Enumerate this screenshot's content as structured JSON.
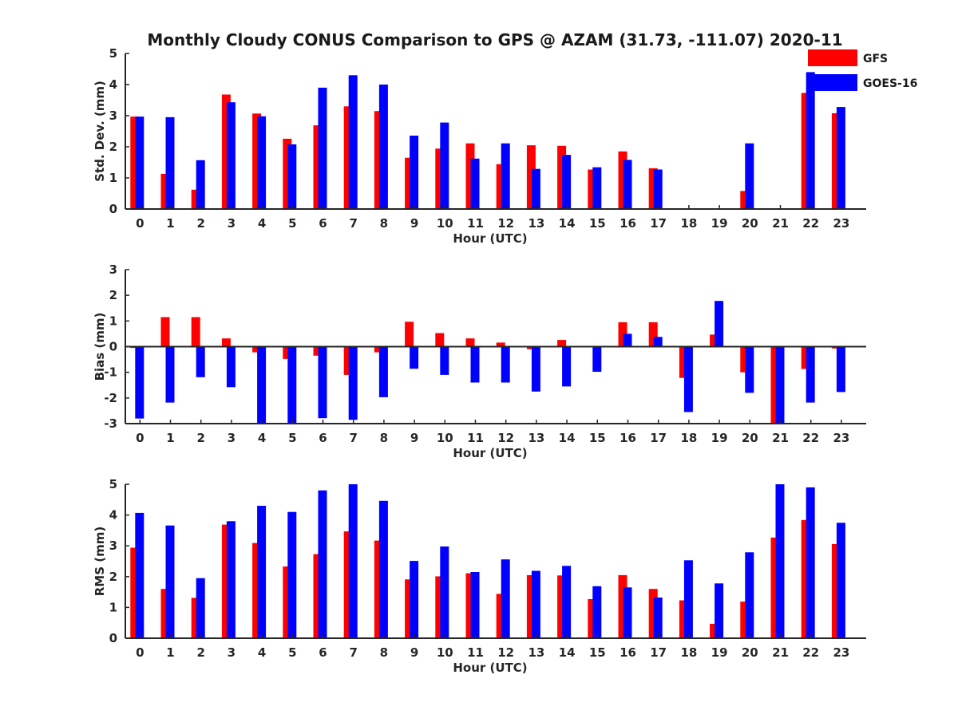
{
  "figure_title": "Monthly Cloudy CONUS Comparison to GPS @ AZAM (31.73, -111.07) 2020-11",
  "chart_data": [
    {
      "type": "bar",
      "title": "Monthly Cloudy CONUS Comparison to GPS @ AZAM (31.73, -111.07) 2020-11",
      "xlabel": "Hour (UTC)",
      "ylabel": "Std. Dev. (mm)",
      "ylim": [
        0,
        5
      ],
      "yticks": [
        0,
        1,
        2,
        3,
        4,
        5
      ],
      "categories": [
        "0",
        "1",
        "2",
        "3",
        "4",
        "5",
        "6",
        "7",
        "8",
        "9",
        "10",
        "11",
        "12",
        "13",
        "14",
        "15",
        "16",
        "17",
        "18",
        "19",
        "20",
        "21",
        "22",
        "23"
      ],
      "legend_position": "top-right",
      "series": [
        {
          "name": "GFS",
          "color": "#ff0000",
          "values": [
            2.97,
            1.13,
            0.62,
            3.68,
            3.07,
            2.26,
            2.69,
            3.3,
            3.15,
            1.65,
            1.94,
            2.11,
            1.44,
            2.05,
            2.03,
            1.27,
            1.85,
            1.31,
            null,
            null,
            0.58,
            null,
            3.73,
            3.08
          ]
        },
        {
          "name": "GOES-16",
          "color": "#0000ff",
          "values": [
            2.97,
            2.95,
            1.57,
            3.43,
            2.98,
            2.08,
            3.9,
            4.3,
            4.0,
            2.36,
            2.78,
            1.62,
            2.11,
            1.29,
            1.74,
            1.34,
            1.58,
            1.27,
            null,
            null,
            2.11,
            null,
            4.4,
            3.28
          ]
        }
      ]
    },
    {
      "type": "bar",
      "xlabel": "Hour (UTC)",
      "ylabel": "Bias (mm)",
      "ylim": [
        -3,
        3
      ],
      "yticks": [
        -3,
        -2,
        -1,
        0,
        1,
        2,
        3
      ],
      "categories": [
        "0",
        "1",
        "2",
        "3",
        "4",
        "5",
        "6",
        "7",
        "8",
        "9",
        "10",
        "11",
        "12",
        "13",
        "14",
        "15",
        "16",
        "17",
        "18",
        "19",
        "20",
        "21",
        "22",
        "23"
      ],
      "series": [
        {
          "name": "GFS",
          "color": "#ff0000",
          "values": [
            -0.05,
            1.15,
            1.15,
            0.32,
            -0.22,
            -0.48,
            -0.35,
            -1.1,
            -0.22,
            0.97,
            0.53,
            0.32,
            0.16,
            -0.1,
            0.26,
            null,
            0.95,
            0.95,
            -1.22,
            0.47,
            -1.0,
            -3.0,
            -0.87,
            -0.07
          ]
        },
        {
          "name": "GOES-16",
          "color": "#0000ff",
          "values": [
            -2.8,
            -2.18,
            -1.19,
            -1.58,
            -3.0,
            -3.0,
            -2.79,
            -2.85,
            -1.97,
            -0.86,
            -1.1,
            -1.4,
            -1.4,
            -1.75,
            -1.55,
            -0.98,
            0.5,
            0.38,
            -2.55,
            1.78,
            -1.8,
            -3.0,
            -2.18,
            -1.77
          ]
        }
      ]
    },
    {
      "type": "bar",
      "xlabel": "Hour (UTC)",
      "ylabel": "RMS (mm)",
      "ylim": [
        0,
        5
      ],
      "yticks": [
        0,
        1,
        2,
        3,
        4,
        5
      ],
      "categories": [
        "0",
        "1",
        "2",
        "3",
        "4",
        "5",
        "6",
        "7",
        "8",
        "9",
        "10",
        "11",
        "12",
        "13",
        "14",
        "15",
        "16",
        "17",
        "18",
        "19",
        "20",
        "21",
        "22",
        "23"
      ],
      "series": [
        {
          "name": "GFS",
          "color": "#ff0000",
          "values": [
            2.94,
            1.6,
            1.31,
            3.69,
            3.09,
            2.33,
            2.73,
            3.47,
            3.17,
            1.91,
            2.01,
            2.11,
            1.44,
            2.05,
            2.04,
            1.27,
            2.05,
            1.6,
            1.23,
            0.47,
            1.19,
            3.27,
            3.84,
            3.06
          ]
        },
        {
          "name": "GOES-16",
          "color": "#0000ff",
          "values": [
            4.07,
            3.66,
            1.95,
            3.8,
            4.3,
            4.1,
            4.8,
            5.0,
            4.46,
            2.51,
            2.98,
            2.15,
            2.56,
            2.19,
            2.35,
            1.69,
            1.65,
            1.32,
            2.53,
            1.78,
            2.79,
            5.0,
            4.9,
            3.75
          ]
        }
      ]
    }
  ]
}
